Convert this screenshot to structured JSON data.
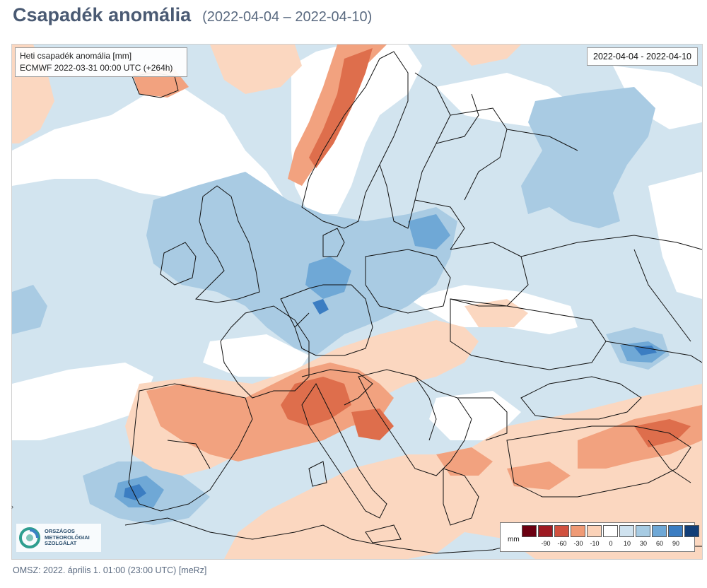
{
  "header": {
    "title": "Csapadék anomália",
    "date_range": "(2022-04-04 – 2022-04-10)"
  },
  "map": {
    "info_line1": "Heti csapadék anomália [mm]",
    "info_line2": "ECMWF 2022-03-31 00:00 UTC (+264h)",
    "date_label": "2022-04-04 - 2022-04-10"
  },
  "legend": {
    "unit": "mm",
    "colors": [
      "#6b0011",
      "#9e1a22",
      "#d1513f",
      "#f09a75",
      "#fbd2b8",
      "#ffffff",
      "#cfe2ef",
      "#a6cbe3",
      "#6fa8d6",
      "#3b7dc2",
      "#123e78"
    ],
    "ticks": [
      "-90",
      "-60",
      "-30",
      "-10",
      "0",
      "10",
      "30",
      "60",
      "90"
    ]
  },
  "logo": {
    "line1": "ORSZÁGOS",
    "line2": "METEOROLÓGIAI",
    "line3": "SZOLGÁLAT"
  },
  "footer": {
    "text": "OMSZ: 2022. április 1. 01:00 (23:00  UTC)  [meRz]"
  },
  "side_marker": "›",
  "colors": {
    "light_blue": "#d2e4ef",
    "mid_blue": "#a9cbe3",
    "strong_blue": "#6fa8d6",
    "dark_blue": "#3b7dc2",
    "light_orange": "#fbd7c0",
    "mid_orange": "#f2a27f",
    "strong_orange": "#de6e4c",
    "white": "#ffffff",
    "border": "#111111"
  }
}
